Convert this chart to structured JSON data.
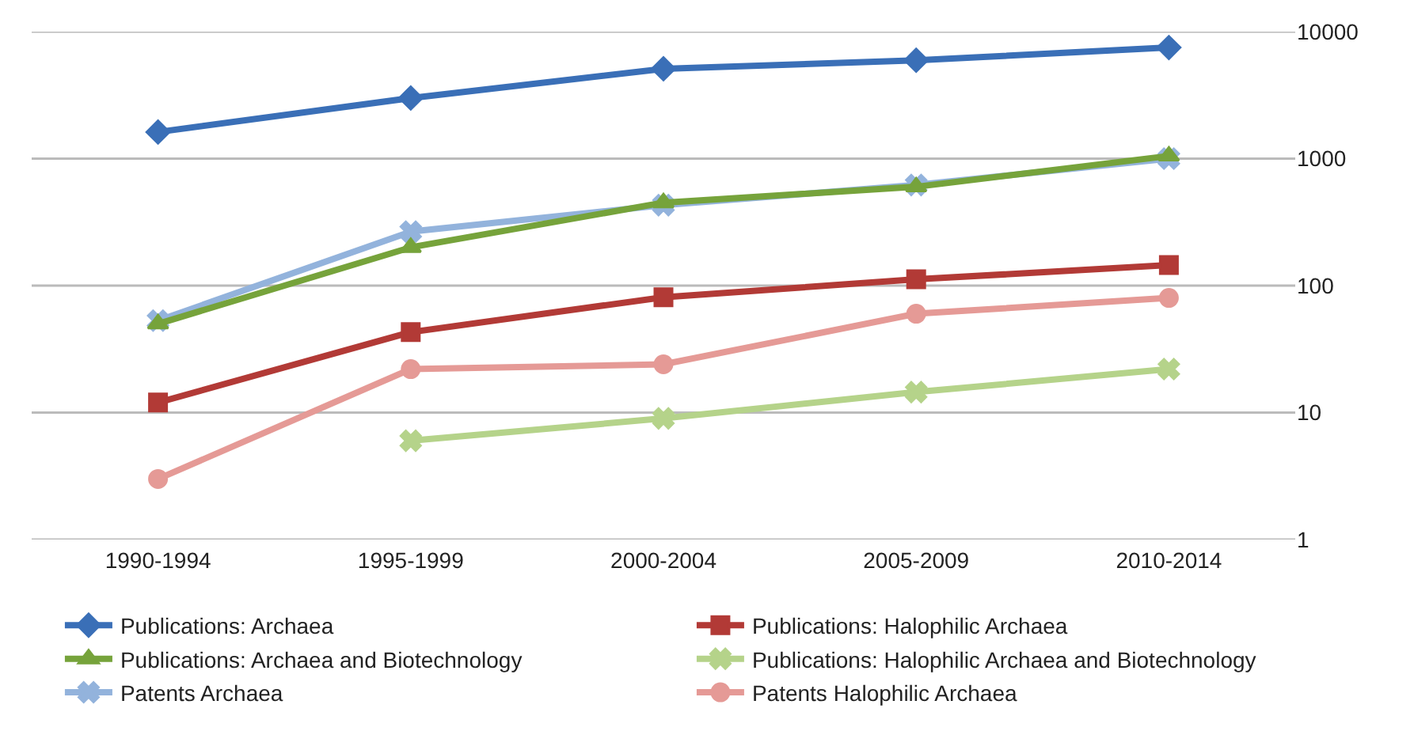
{
  "chart_data": {
    "type": "line",
    "log": "y",
    "grid": "y",
    "legend": "bottom",
    "categories": [
      "1990-1994",
      "1995-1999",
      "2000-2004",
      "2005-2009",
      "2010-2014"
    ],
    "ylim": [
      1,
      10000
    ],
    "yticks": [
      1,
      10,
      100,
      1000,
      10000
    ],
    "series": [
      {
        "name": "Publications: Archaea",
        "color": "#3a6fb7",
        "marker": "diamond",
        "values": [
          1620,
          3000,
          5100,
          5950,
          7500
        ]
      },
      {
        "name": "Publications: Halophilic Archaea",
        "color": "#b23a36",
        "marker": "square",
        "values": [
          12,
          43,
          81,
          112,
          145
        ]
      },
      {
        "name": "Publications: Archaea and Biotechnology",
        "color": "#76a33b",
        "marker": "triangle",
        "values": [
          50,
          200,
          450,
          600,
          1050
        ]
      },
      {
        "name": "Publications: Halophilic Archaea and Biotechnology",
        "color": "#b5d38a",
        "marker": "cross",
        "values": [
          null,
          6,
          9,
          14.5,
          22
        ]
      },
      {
        "name": "Patents Archaea",
        "color": "#93b3dc",
        "marker": "cross",
        "values": [
          53,
          266,
          430,
          620,
          1000
        ]
      },
      {
        "name": "Patents Halophilic Archaea",
        "color": "#e59a96",
        "marker": "circle",
        "values": [
          3,
          22,
          24,
          60,
          80
        ]
      }
    ]
  }
}
